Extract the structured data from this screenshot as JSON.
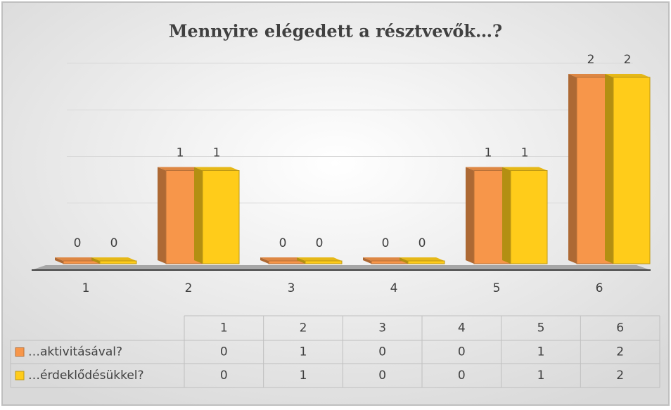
{
  "chart_data": {
    "type": "bar3d",
    "title": "Mennyire elégedett a résztvevők…?",
    "categories": [
      "1",
      "2",
      "3",
      "4",
      "5",
      "6"
    ],
    "series": [
      {
        "name": "…aktivitásával?",
        "color": "#f7964a",
        "values": [
          0,
          1,
          0,
          0,
          1,
          2
        ]
      },
      {
        "name": "…érdeklődésükkel?",
        "color": "#ffcc1a",
        "values": [
          0,
          1,
          0,
          0,
          1,
          2
        ]
      }
    ],
    "ylim": [
      0,
      2.4
    ],
    "yticks": [
      0,
      0.5,
      1,
      1.5,
      2
    ],
    "grid": true,
    "data_table": true
  }
}
